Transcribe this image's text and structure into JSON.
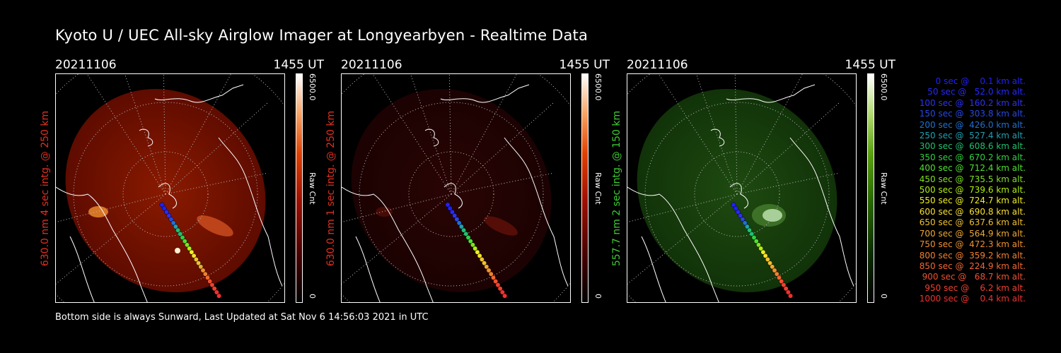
{
  "title": "Kyoto U / UEC All-sky Airglow Imager at Longyearbyen - Realtime Data",
  "footer": "Bottom side is always Sunward, Last Updated at Sat Nov  6 14:56:03 2021 in UTC",
  "panels": [
    {
      "date": "20211106",
      "time": "1455 UT",
      "side_label": "630.0 nm 4 sec intg. @ 250 km",
      "side_color": "#e03020",
      "cbar_max": "6500.0",
      "cbar_min": "0",
      "cbar_unit": "Raw Cnt",
      "theme": "red"
    },
    {
      "date": "20211106",
      "time": "1455 UT",
      "side_label": "630.0 nm 1 sec intg. @ 250 km",
      "side_color": "#e03020",
      "cbar_max": "6500.0",
      "cbar_min": "0",
      "cbar_unit": "Raw Cnt",
      "theme": "darkred"
    },
    {
      "date": "20211106",
      "time": "1455 UT",
      "side_label": "557.7 nm 2 sec intg. @ 150 km",
      "side_color": "#3ccc30",
      "cbar_max": "6500.0",
      "cbar_min": "0",
      "cbar_unit": "Raw Cnt",
      "theme": "green"
    }
  ],
  "legend": [
    {
      "text": "   0 sec @    0.1 km alt.",
      "color": "#2020ff"
    },
    {
      "text": "  50 sec @   52.0 km alt.",
      "color": "#2828ff"
    },
    {
      "text": " 100 sec @  160.2 km alt.",
      "color": "#3030f0"
    },
    {
      "text": " 150 sec @  303.8 km alt.",
      "color": "#2848e0"
    },
    {
      "text": " 200 sec @  426.0 km alt.",
      "color": "#2070d0"
    },
    {
      "text": " 250 sec @  527.4 km alt.",
      "color": "#20a0b0"
    },
    {
      "text": " 300 sec @  608.6 km alt.",
      "color": "#20c070"
    },
    {
      "text": " 350 sec @  670.2 km alt.",
      "color": "#30d040"
    },
    {
      "text": " 400 sec @  712.4 km alt.",
      "color": "#50e030"
    },
    {
      "text": " 450 sec @  735.5 km alt.",
      "color": "#80e020"
    },
    {
      "text": " 500 sec @  739.6 km alt.",
      "color": "#b0f010"
    },
    {
      "text": " 550 sec @  724.7 km alt.",
      "color": "#f0f020"
    },
    {
      "text": " 600 sec @  690.8 km alt.",
      "color": "#f8e030"
    },
    {
      "text": " 650 sec @  637.6 km alt.",
      "color": "#f0c030"
    },
    {
      "text": " 700 sec @  564.9 km alt.",
      "color": "#f0a830"
    },
    {
      "text": " 750 sec @  472.3 km alt.",
      "color": "#f09030"
    },
    {
      "text": " 800 sec @  359.2 km alt.",
      "color": "#f08030"
    },
    {
      "text": " 850 sec @  224.9 km alt.",
      "color": "#f06830"
    },
    {
      "text": " 900 sec @   68.7 km alt.",
      "color": "#f05030"
    },
    {
      "text": " 950 sec @    6.2 km alt.",
      "color": "#f04030"
    },
    {
      "text": "1000 sec @    0.4 km alt.",
      "color": "#f03030"
    }
  ]
}
